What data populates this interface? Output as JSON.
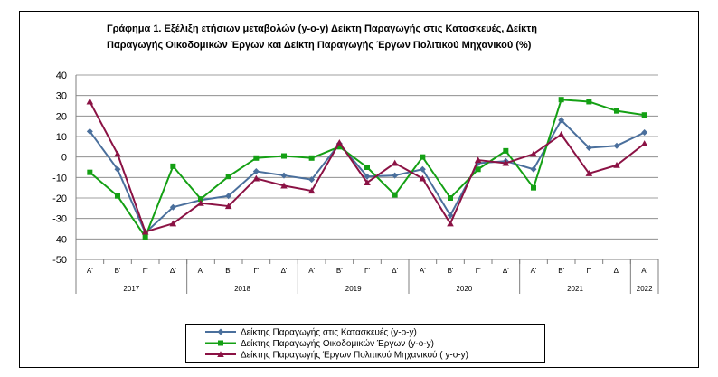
{
  "chart_data": {
    "type": "line",
    "title_lines": [
      "Γράφημα 1. Εξέλιξη ετήσιων μεταβολών (y-o-y) Δείκτη Παραγωγής στις Κατασκευές, Δείκτη",
      "Παραγωγής Οικοδομικών Έργων και  Δείκτη Παραγωγής  Έργων Πολιτικού Μηχανικού (%)"
    ],
    "categories": [
      "Α'",
      "Β'",
      "Γ'",
      "Δ'",
      "Α'",
      "Β'",
      "Γ'",
      "Δ'",
      "Α'",
      "Β'",
      "Γ'",
      "Δ'",
      "Α'",
      "Β'",
      "Γ'",
      "Δ'",
      "Α'",
      "Β'",
      "Γ'",
      "Δ'",
      "Α'"
    ],
    "year_groups": [
      {
        "label": "2017",
        "count": 4
      },
      {
        "label": "2018",
        "count": 4
      },
      {
        "label": "2019",
        "count": 4
      },
      {
        "label": "2020",
        "count": 4
      },
      {
        "label": "2021",
        "count": 4
      },
      {
        "label": "2022",
        "count": 1
      }
    ],
    "ylim": [
      -50,
      40
    ],
    "yticks": [
      40,
      30,
      20,
      10,
      0,
      -10,
      -20,
      -30,
      -40,
      -50
    ],
    "grid": true,
    "legend_position": "bottom",
    "series": [
      {
        "name": "Δείκτης Παραγωγής στις Κατασκευές (y-o-y)",
        "color": "#4a6f9c",
        "marker": "diamond",
        "values": [
          12.5,
          -6,
          -37,
          -24.5,
          -21,
          -19,
          -7,
          -9,
          -11,
          6.5,
          -9.5,
          -9,
          -6,
          -28.5,
          -3,
          -2,
          -6,
          18,
          4.5,
          5.5,
          12
        ]
      },
      {
        "name": "Δείκτης Παραγωγής Οικοδομικών Έργων (y-o-y)",
        "color": "#14a014",
        "marker": "square",
        "values": [
          -7.5,
          -19,
          -39,
          -4.5,
          -20.5,
          -9.5,
          -0.5,
          0.5,
          -0.5,
          5,
          -5,
          -18.5,
          0,
          -20,
          -6,
          3,
          -15,
          28,
          27,
          22.5,
          20.5
        ]
      },
      {
        "name": "Δείκτης Παραγωγής Έργων Πολιτικού Μηχανικού ( y-o-y)",
        "color": "#8b1244",
        "marker": "triangle",
        "values": [
          27,
          1.5,
          -36.5,
          -32.5,
          -22.5,
          -24,
          -10.5,
          -14,
          -16.5,
          7,
          -12.5,
          -3,
          -10.5,
          -32.5,
          -1.5,
          -3,
          1.5,
          11,
          -8,
          -4,
          6.5
        ]
      }
    ]
  }
}
